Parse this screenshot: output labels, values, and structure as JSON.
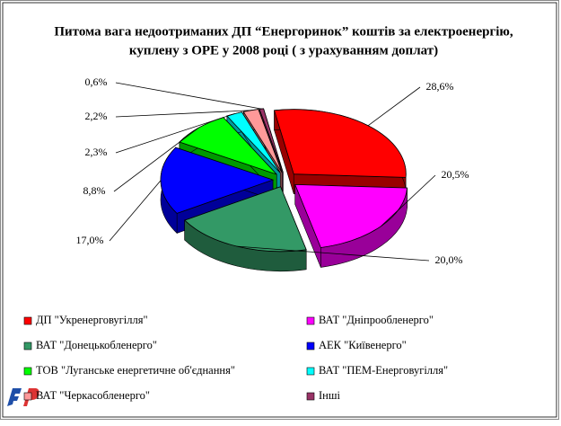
{
  "chart_data": {
    "type": "pie",
    "title": [
      "Питома вага недоотриманих ДП “Енергоринок” коштів за електроенергію,",
      "куплену з ОРЕ у 2008 році  ( з урахуванням доплат)"
    ],
    "categories": [
      "ДП \"Укренерговугілля\"",
      "ВАТ \"Дніпрообленерго\"",
      "ВАТ \"Донецькобленерго\"",
      "АЕК \"Київенерго\"",
      "ТОВ \"Луганське енергетичне об'єднання\"",
      "ВАТ \"ПЕМ-Енерговугілля\"",
      "ВАТ  \"Черкасобленерго\"",
      "Інші"
    ],
    "values": [
      28.6,
      20.5,
      20.0,
      17.0,
      8.8,
      2.3,
      2.2,
      0.6
    ],
    "value_labels": [
      "28,6%",
      "20,5%",
      "20,0%",
      "17,0%",
      "8,8%",
      "2,3%",
      "2,2%",
      "0,6%"
    ],
    "colors": [
      "#ff0000",
      "#ff00ff",
      "#339966",
      "#0000ff",
      "#00ff00",
      "#00ffff",
      "#ff9999",
      "#993366"
    ]
  }
}
